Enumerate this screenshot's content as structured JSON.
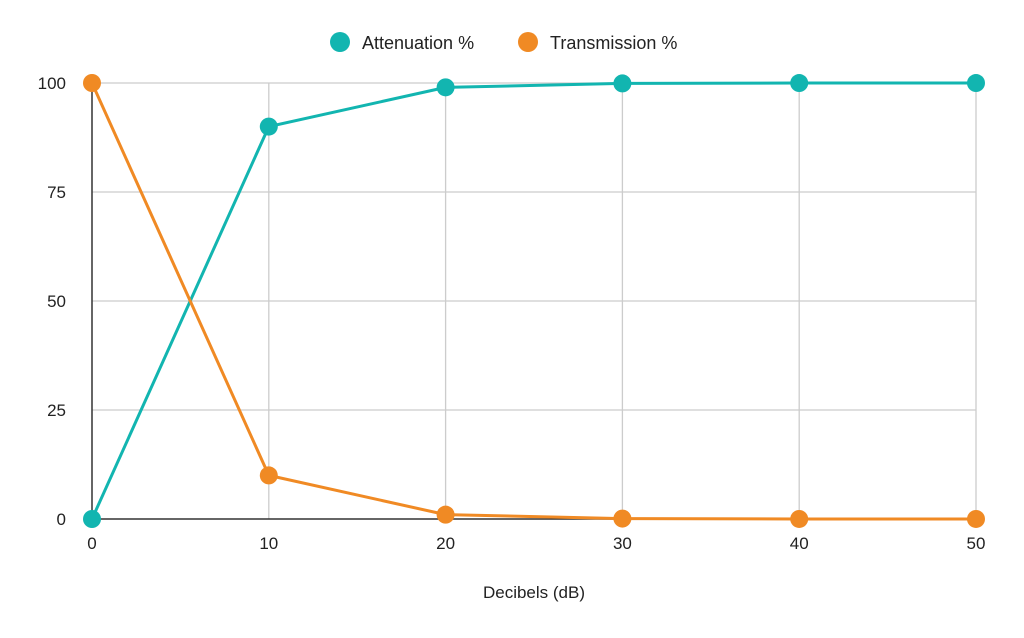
{
  "chart_data": {
    "type": "line",
    "title": "",
    "xlabel": "Decibels (dB)",
    "ylabel": "",
    "x": [
      0,
      10,
      20,
      30,
      40,
      50
    ],
    "xlim": [
      0,
      50
    ],
    "ylim": [
      0,
      100
    ],
    "x_ticks": [
      "0",
      "10",
      "20",
      "30",
      "40",
      "50"
    ],
    "y_ticks": [
      "0",
      "25",
      "50",
      "75",
      "100"
    ],
    "grid": true,
    "legend_position": "top",
    "series": [
      {
        "name": "Attenuation %",
        "color": "#12B5B0",
        "values": [
          0,
          90,
          99,
          99.9,
          99.99,
          99.999
        ]
      },
      {
        "name": "Transmission %",
        "color": "#F08A24",
        "values": [
          100,
          10,
          1,
          0.1,
          0.01,
          0.001
        ]
      }
    ]
  }
}
